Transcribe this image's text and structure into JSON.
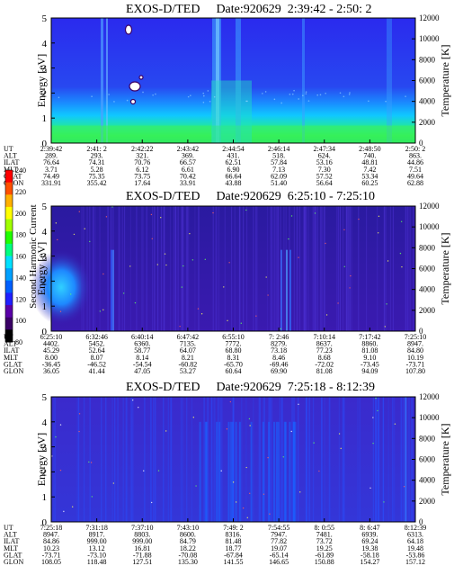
{
  "chart_data": [
    {
      "type": "heatmap",
      "title": "EXOS-D/TED",
      "date_label": "Date:920629",
      "time_range": "2:39:42 - 2:50: 2",
      "ylabel": "Energy [eV]",
      "y2label": "Temperature [K]",
      "ylim": [
        0,
        5
      ],
      "y_ticks": [
        "0",
        "1",
        "2",
        "3",
        "4",
        "5"
      ],
      "y2lim": [
        0,
        12000
      ],
      "y2_ticks": [
        "0",
        "2000",
        "4000",
        "6000",
        "8000",
        "10000",
        "12000"
      ],
      "ephemeris_labels": [
        "UT",
        "ALT",
        "ILAT",
        "MLT",
        "GLAT",
        "GLON"
      ],
      "ephemeris": [
        [
          "2:39:42",
          "289.",
          "76.64",
          "3.71",
          "74.49",
          "331.91"
        ],
        [
          "2:41: 2",
          "293.",
          "74.31",
          "5.28",
          "75.35",
          "355.42"
        ],
        [
          "2:42:22",
          "321.",
          "70.76",
          "6.12",
          "73.75",
          "17.64"
        ],
        [
          "2:43:42",
          "369.",
          "66.57",
          "6.61",
          "70.42",
          "33.91"
        ],
        [
          "2:44:54",
          "431.",
          "62.51",
          "6.90",
          "66.64",
          "43.88"
        ],
        [
          "2:46:14",
          "518.",
          "57.84",
          "7.13",
          "62.09",
          "51.40"
        ],
        [
          "2:47:34",
          "624.",
          "53.16",
          "7.30",
          "57.52",
          "56.64"
        ],
        [
          "2:48:50",
          "740.",
          "48.81",
          "7.42",
          "53.34",
          "60.25"
        ],
        [
          "2:50: 2",
          "863.",
          "44.86",
          "7.51",
          "49.64",
          "62.88"
        ]
      ]
    },
    {
      "type": "heatmap",
      "title": "EXOS-D/TED",
      "date_label": "Date:920629",
      "time_range": "6:25:10 - 7:25:10",
      "ylabel": "Energy [eV]",
      "y2label": "Temperature [K]",
      "ylim": [
        0,
        5
      ],
      "y_ticks": [
        "0",
        "1",
        "2",
        "3",
        "4",
        "5"
      ],
      "y2lim": [
        0,
        12000
      ],
      "y2_ticks": [
        "0",
        "2000",
        "4000",
        "6000",
        "8000",
        "10000",
        "12000"
      ],
      "ephemeris_labels": [
        "UT",
        "ALT",
        "ILAT",
        "MLT",
        "GLAT",
        "GLON"
      ],
      "ephemeris": [
        [
          "6:25:10",
          "4402.",
          "45.29",
          "8.00",
          "-36.45",
          "36.05"
        ],
        [
          "6:32:46",
          "5452.",
          "52.64",
          "8.07",
          "-46.52",
          "41.44"
        ],
        [
          "6:40:14",
          "6360.",
          "58.77",
          "8.14",
          "-54.54",
          "47.05"
        ],
        [
          "6:47:42",
          "7135.",
          "64.07",
          "8.21",
          "-60.82",
          "53.27"
        ],
        [
          "6:55:10",
          "7772.",
          "68.80",
          "8.31",
          "-65.70",
          "60.64"
        ],
        [
          "7: 2:46",
          "8279.",
          "73.18",
          "8.46",
          "-69.46",
          "69.90"
        ],
        [
          "7:10:14",
          "8637.",
          "77.23",
          "8.68",
          "-72.02",
          "81.08"
        ],
        [
          "7:17:42",
          "8860.",
          "81.08",
          "9.10",
          "-73.45",
          "94.09"
        ],
        [
          "7:25:10",
          "8947.",
          "84.80",
          "10.19",
          "-73.71",
          "107.80"
        ]
      ]
    },
    {
      "type": "heatmap",
      "title": "EXOS-D/TED",
      "date_label": "Date:920629",
      "time_range": "7:25:18 - 8:12:39",
      "ylabel": "Energy [eV]",
      "y2label": "Temperature [K]",
      "ylim": [
        0,
        5
      ],
      "y_ticks": [
        "0",
        "1",
        "2",
        "3",
        "4",
        "5"
      ],
      "y2lim": [
        0,
        12000
      ],
      "y2_ticks": [
        "0",
        "2000",
        "4000",
        "6000",
        "8000",
        "10000",
        "12000"
      ],
      "ephemeris_labels": [
        "UT",
        "ALT",
        "ILAT",
        "MLT",
        "GLAT",
        "GLON"
      ],
      "ephemeris": [
        [
          "7:25:18",
          "8947.",
          "84.86",
          "10.23",
          "-73.71",
          "108.05"
        ],
        [
          "7:31:18",
          "8917.",
          "999.00",
          "13.12",
          "-73.10",
          "118.48"
        ],
        [
          "7:37:10",
          "8803.",
          "999.00",
          "16.81",
          "-71.88",
          "127.51"
        ],
        [
          "7:43:10",
          "8600.",
          "84.79",
          "18.22",
          "-70.08",
          "135.30"
        ],
        [
          "7:49: 2",
          "8316.",
          "81.48",
          "18.77",
          "-67.84",
          "141.55"
        ],
        [
          "7:54:55",
          "7947.",
          "77.82",
          "19.07",
          "-65.14",
          "146.65"
        ],
        [
          "8: 0:55",
          "7481.",
          "73.72",
          "19.25",
          "-61.89",
          "150.88"
        ],
        [
          "8: 6:47",
          "6939.",
          "69.24",
          "19.38",
          "-58.18",
          "154.27"
        ],
        [
          "8:12:39",
          "6313.",
          "64.18",
          "19.48",
          "-53.86",
          "157.12"
        ]
      ]
    }
  ],
  "colorbar": {
    "label": "Second Harmonic Current",
    "ticks": [
      "80",
      "100",
      "120",
      "140",
      "160",
      "180",
      "200",
      "220",
      "240"
    ],
    "colors": [
      "#000000",
      "#3a0066",
      "#5a00a8",
      "#2020ff",
      "#0060ff",
      "#00a0ff",
      "#00e0ff",
      "#00ff80",
      "#20ff00",
      "#a0ff00",
      "#ffff00",
      "#ffb000",
      "#ff5000",
      "#ff0000"
    ]
  }
}
